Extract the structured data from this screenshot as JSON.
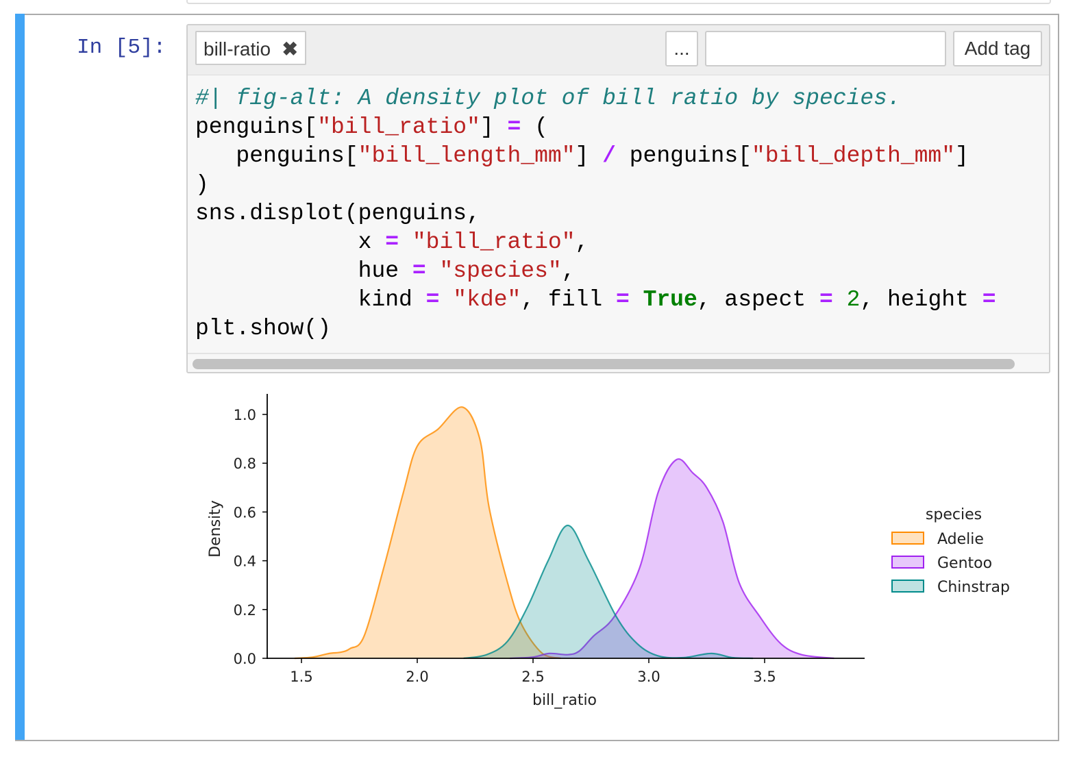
{
  "cell": {
    "prompt": "In [5]:",
    "tags": [
      {
        "label": "bill-ratio",
        "remove_icon": "close-x-icon"
      }
    ],
    "more_button": "...",
    "tag_input_value": "",
    "add_tag_button": "Add tag",
    "accent_color": "#42a5f5",
    "code_lines": [
      [
        [
          "c-comment",
          "#| fig-alt: A density plot of bill ratio by species."
        ]
      ],
      [
        [
          "",
          "penguins["
        ],
        [
          "c-str",
          "\"bill_ratio\""
        ],
        [
          "",
          "] "
        ],
        [
          "c-op",
          "="
        ],
        [
          "",
          " ("
        ]
      ],
      [
        [
          "",
          "   penguins["
        ],
        [
          "c-str",
          "\"bill_length_mm\""
        ],
        [
          "",
          "] "
        ],
        [
          "c-op",
          "/"
        ],
        [
          "",
          " penguins["
        ],
        [
          "c-str",
          "\"bill_depth_mm\""
        ],
        [
          "",
          "]"
        ]
      ],
      [
        [
          "",
          ")"
        ]
      ],
      [
        [
          "",
          "sns.displot(penguins,"
        ]
      ],
      [
        [
          "",
          "            x "
        ],
        [
          "c-op",
          "="
        ],
        [
          "",
          " "
        ],
        [
          "c-str",
          "\"bill_ratio\""
        ],
        [
          "",
          ","
        ]
      ],
      [
        [
          "",
          "            hue "
        ],
        [
          "c-op",
          "="
        ],
        [
          "",
          " "
        ],
        [
          "c-str",
          "\"species\""
        ],
        [
          "",
          ","
        ]
      ],
      [
        [
          "",
          "            kind "
        ],
        [
          "c-op",
          "="
        ],
        [
          "",
          " "
        ],
        [
          "c-str",
          "\"kde\""
        ],
        [
          "",
          ", fill "
        ],
        [
          "c-op",
          "="
        ],
        [
          "",
          " "
        ],
        [
          "c-kw",
          "True"
        ],
        [
          "",
          ", aspect "
        ],
        [
          "c-op",
          "="
        ],
        [
          "",
          " "
        ],
        [
          "c-num",
          "2"
        ],
        [
          "",
          ", height "
        ],
        [
          "c-op",
          "="
        ]
      ],
      [
        [
          "",
          "plt.show()"
        ]
      ]
    ]
  },
  "chart_data": {
    "type": "area",
    "title": "",
    "xlabel": "bill_ratio",
    "ylabel": "Density",
    "xlim": [
      1.35,
      3.93
    ],
    "ylim": [
      0,
      1.084
    ],
    "xticks": [
      "1.5",
      "2.0",
      "2.5",
      "3.0",
      "3.5"
    ],
    "yticks": [
      "0.0",
      "0.2",
      "0.4",
      "0.6",
      "0.8",
      "1.0"
    ],
    "grid": false,
    "legend": {
      "title": "species",
      "placement": "right"
    },
    "series": [
      {
        "name": "Adelie",
        "color": "#ff8c00",
        "x": [
          1.47,
          1.55,
          1.62,
          1.67,
          1.71,
          1.77,
          1.855,
          1.94,
          2.0,
          2.09,
          2.195,
          2.27,
          2.31,
          2.39,
          2.45,
          2.54,
          2.62
        ],
        "y": [
          0,
          0.005,
          0.02,
          0.025,
          0.04,
          0.09,
          0.37,
          0.68,
          0.87,
          0.94,
          1.03,
          0.9,
          0.62,
          0.31,
          0.14,
          0.02,
          0
        ]
      },
      {
        "name": "Gentoo",
        "color": "#a020f0",
        "x": [
          2.4,
          2.5,
          2.57,
          2.65,
          2.7,
          2.76,
          2.85,
          2.96,
          3.04,
          3.12,
          3.19,
          3.25,
          3.32,
          3.39,
          3.48,
          3.57,
          3.66,
          3.8
        ],
        "y": [
          0,
          0.005,
          0.02,
          0.015,
          0.03,
          0.09,
          0.17,
          0.37,
          0.68,
          0.815,
          0.76,
          0.7,
          0.56,
          0.31,
          0.17,
          0.06,
          0.015,
          0
        ]
      },
      {
        "name": "Chinstrap",
        "color": "#008b8b",
        "x": [
          2.2,
          2.3,
          2.39,
          2.476,
          2.565,
          2.65,
          2.74,
          2.86,
          2.95,
          3.04,
          3.15,
          3.27,
          3.36,
          3.45
        ],
        "y": [
          0,
          0.015,
          0.07,
          0.21,
          0.4,
          0.545,
          0.4,
          0.17,
          0.06,
          0.01,
          0.003,
          0.02,
          0.003,
          0
        ]
      }
    ]
  }
}
